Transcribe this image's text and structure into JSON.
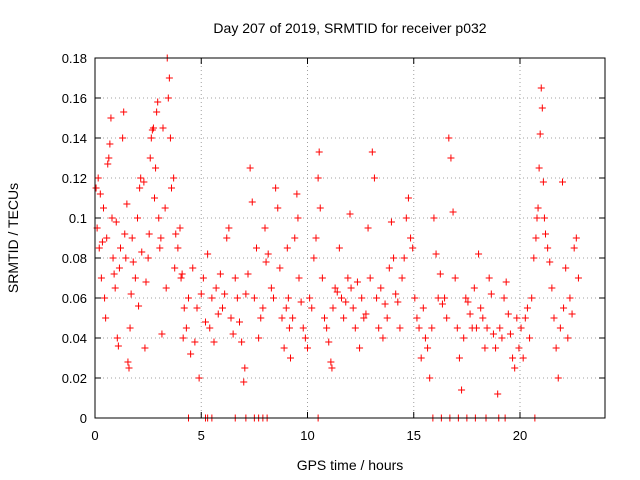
{
  "chart_data": {
    "type": "scatter",
    "title": "Day 207 of 2019, SRMTID for receiver p032",
    "xlabel": "GPS time / hours",
    "ylabel": "SRMTID / TECUs",
    "xlim": [
      0,
      24
    ],
    "ylim": [
      0,
      0.18
    ],
    "x_ticks": [
      0,
      5,
      10,
      15,
      20
    ],
    "x_tick_labels": [
      "0",
      "5",
      "10",
      "15",
      "20"
    ],
    "y_ticks": [
      0,
      0.02,
      0.04,
      0.06,
      0.08,
      0.1,
      0.12,
      0.14,
      0.16,
      0.18
    ],
    "y_tick_labels": [
      "0",
      "0.02",
      "0.04",
      "0.06",
      "0.08",
      "0.1",
      "0.12",
      "0.14",
      "0.16",
      "0.18"
    ],
    "grid": true,
    "marker": "+",
    "color": "#ff0000",
    "series": [
      {
        "name": "SRMTID",
        "points": [
          [
            0.05,
            0.115
          ],
          [
            0.1,
            0.095
          ],
          [
            0.15,
            0.12
          ],
          [
            0.2,
            0.085
          ],
          [
            0.25,
            0.112
          ],
          [
            0.3,
            0.07
          ],
          [
            0.35,
            0.088
          ],
          [
            0.4,
            0.105
          ],
          [
            0.45,
            0.06
          ],
          [
            0.5,
            0.05
          ],
          [
            0.55,
            0.09
          ],
          [
            0.6,
            0.127
          ],
          [
            0.65,
            0.13
          ],
          [
            0.7,
            0.137
          ],
          [
            0.75,
            0.15
          ],
          [
            0.8,
            0.1
          ],
          [
            0.85,
            0.08
          ],
          [
            0.9,
            0.072
          ],
          [
            0.95,
            0.065
          ],
          [
            1.0,
            0.098
          ],
          [
            1.05,
            0.04
          ],
          [
            1.1,
            0.036
          ],
          [
            1.15,
            0.075
          ],
          [
            1.2,
            0.085
          ],
          [
            1.3,
            0.14
          ],
          [
            1.35,
            0.153
          ],
          [
            1.4,
            0.092
          ],
          [
            1.45,
            0.08
          ],
          [
            1.5,
            0.107
          ],
          [
            1.55,
            0.028
          ],
          [
            1.6,
            0.025
          ],
          [
            1.65,
            0.045
          ],
          [
            1.7,
            0.062
          ],
          [
            1.75,
            0.09
          ],
          [
            1.8,
            0.078
          ],
          [
            1.9,
            0.07
          ],
          [
            2.0,
            0.1
          ],
          [
            2.05,
            0.056
          ],
          [
            2.1,
            0.115
          ],
          [
            2.15,
            0.12
          ],
          [
            2.2,
            0.083
          ],
          [
            2.3,
            0.118
          ],
          [
            2.35,
            0.035
          ],
          [
            2.4,
            0.068
          ],
          [
            2.5,
            0.08
          ],
          [
            2.55,
            0.092
          ],
          [
            2.6,
            0.13
          ],
          [
            2.65,
            0.14
          ],
          [
            2.7,
            0.144
          ],
          [
            2.75,
            0.145
          ],
          [
            2.8,
            0.11
          ],
          [
            2.85,
            0.125
          ],
          [
            2.9,
            0.153
          ],
          [
            2.95,
            0.158
          ],
          [
            3.0,
            0.1
          ],
          [
            3.05,
            0.085
          ],
          [
            3.1,
            0.09
          ],
          [
            3.15,
            0.042
          ],
          [
            3.2,
            0.145
          ],
          [
            3.3,
            0.105
          ],
          [
            3.35,
            0.065
          ],
          [
            3.4,
            0.18
          ],
          [
            3.45,
            0.16
          ],
          [
            3.5,
            0.17
          ],
          [
            3.55,
            0.14
          ],
          [
            3.6,
            0.115
          ],
          [
            3.7,
            0.12
          ],
          [
            3.75,
            0.075
          ],
          [
            3.8,
            0.092
          ],
          [
            3.9,
            0.085
          ],
          [
            4.0,
            0.095
          ],
          [
            4.05,
            0.07
          ],
          [
            4.1,
            0.072
          ],
          [
            4.15,
            0.04
          ],
          [
            4.2,
            0.055
          ],
          [
            4.3,
            0.045
          ],
          [
            4.4,
            0.06
          ],
          [
            4.5,
            0.032
          ],
          [
            4.6,
            0.075
          ],
          [
            4.7,
            0.038
          ],
          [
            4.8,
            0.055
          ],
          [
            4.9,
            0.02
          ],
          [
            5.0,
            0.062
          ],
          [
            5.1,
            0.07
          ],
          [
            5.2,
            0.048
          ],
          [
            5.3,
            0.082
          ],
          [
            5.4,
            0.045
          ],
          [
            5.5,
            0.06
          ],
          [
            5.6,
            0.038
          ],
          [
            5.7,
            0.065
          ],
          [
            5.8,
            0.052
          ],
          [
            5.9,
            0.072
          ],
          [
            6.0,
            0.055
          ],
          [
            6.1,
            0.062
          ],
          [
            6.2,
            0.09
          ],
          [
            6.3,
            0.095
          ],
          [
            6.4,
            0.05
          ],
          [
            6.5,
            0.042
          ],
          [
            6.6,
            0.07
          ],
          [
            6.7,
            0.06
          ],
          [
            6.8,
            0.048
          ],
          [
            6.9,
            0.038
          ],
          [
            7.0,
            0.018
          ],
          [
            7.05,
            0.025
          ],
          [
            7.1,
            0.062
          ],
          [
            7.2,
            0.072
          ],
          [
            7.3,
            0.125
          ],
          [
            7.4,
            0.108
          ],
          [
            7.5,
            0.06
          ],
          [
            7.6,
            0.085
          ],
          [
            7.7,
            0.04
          ],
          [
            7.8,
            0.05
          ],
          [
            7.9,
            0.055
          ],
          [
            8.0,
            0.095
          ],
          [
            8.05,
            0.078
          ],
          [
            8.15,
            0.082
          ],
          [
            8.3,
            0.065
          ],
          [
            8.4,
            0.06
          ],
          [
            8.5,
            0.115
          ],
          [
            8.6,
            0.105
          ],
          [
            8.7,
            0.075
          ],
          [
            8.8,
            0.05
          ],
          [
            8.9,
            0.035
          ],
          [
            9.0,
            0.055
          ],
          [
            9.05,
            0.085
          ],
          [
            9.1,
            0.06
          ],
          [
            9.15,
            0.045
          ],
          [
            9.2,
            0.03
          ],
          [
            9.3,
            0.05
          ],
          [
            9.4,
            0.09
          ],
          [
            9.5,
            0.112
          ],
          [
            9.55,
            0.1
          ],
          [
            9.6,
            0.07
          ],
          [
            9.7,
            0.058
          ],
          [
            9.8,
            0.045
          ],
          [
            9.9,
            0.04
          ],
          [
            10.0,
            0.035
          ],
          [
            10.1,
            0.06
          ],
          [
            10.2,
            0.055
          ],
          [
            10.3,
            0.08
          ],
          [
            10.4,
            0.09
          ],
          [
            10.5,
            0.12
          ],
          [
            10.55,
            0.133
          ],
          [
            10.6,
            0.105
          ],
          [
            10.7,
            0.07
          ],
          [
            10.8,
            0.05
          ],
          [
            10.9,
            0.045
          ],
          [
            11.0,
            0.038
          ],
          [
            11.1,
            0.028
          ],
          [
            11.15,
            0.025
          ],
          [
            11.2,
            0.055
          ],
          [
            11.3,
            0.065
          ],
          [
            11.4,
            0.063
          ],
          [
            11.5,
            0.085
          ],
          [
            11.6,
            0.06
          ],
          [
            11.7,
            0.05
          ],
          [
            11.8,
            0.058
          ],
          [
            11.9,
            0.07
          ],
          [
            12.0,
            0.102
          ],
          [
            12.05,
            0.065
          ],
          [
            12.15,
            0.055
          ],
          [
            12.25,
            0.045
          ],
          [
            12.35,
            0.068
          ],
          [
            12.45,
            0.035
          ],
          [
            12.55,
            0.06
          ],
          [
            12.65,
            0.05
          ],
          [
            12.75,
            0.052
          ],
          [
            12.85,
            0.095
          ],
          [
            12.95,
            0.07
          ],
          [
            13.05,
            0.133
          ],
          [
            13.15,
            0.12
          ],
          [
            13.25,
            0.06
          ],
          [
            13.35,
            0.045
          ],
          [
            13.45,
            0.065
          ],
          [
            13.55,
            0.04
          ],
          [
            13.65,
            0.057
          ],
          [
            13.75,
            0.05
          ],
          [
            13.85,
            0.075
          ],
          [
            13.95,
            0.098
          ],
          [
            14.05,
            0.08
          ],
          [
            14.15,
            0.062
          ],
          [
            14.25,
            0.058
          ],
          [
            14.35,
            0.045
          ],
          [
            14.45,
            0.07
          ],
          [
            14.55,
            0.08
          ],
          [
            14.65,
            0.1
          ],
          [
            14.75,
            0.11
          ],
          [
            14.85,
            0.09
          ],
          [
            14.95,
            0.085
          ],
          [
            15.05,
            0.06
          ],
          [
            15.15,
            0.05
          ],
          [
            15.25,
            0.045
          ],
          [
            15.35,
            0.03
          ],
          [
            15.45,
            0.055
          ],
          [
            15.55,
            0.04
          ],
          [
            15.65,
            0.035
          ],
          [
            15.75,
            0.02
          ],
          [
            15.85,
            0.045
          ],
          [
            15.95,
            0.1
          ],
          [
            16.05,
            0.082
          ],
          [
            16.15,
            0.06
          ],
          [
            16.25,
            0.072
          ],
          [
            16.35,
            0.057
          ],
          [
            16.45,
            0.06
          ],
          [
            16.55,
            0.05
          ],
          [
            16.65,
            0.14
          ],
          [
            16.75,
            0.13
          ],
          [
            16.85,
            0.103
          ],
          [
            16.95,
            0.07
          ],
          [
            17.05,
            0.045
          ],
          [
            17.15,
            0.03
          ],
          [
            17.25,
            0.014
          ],
          [
            17.35,
            0.04
          ],
          [
            17.45,
            0.06
          ],
          [
            17.55,
            0.058
          ],
          [
            17.65,
            0.052
          ],
          [
            17.75,
            0.045
          ],
          [
            17.85,
            0.065
          ],
          [
            17.95,
            0.045
          ],
          [
            18.05,
            0.082
          ],
          [
            18.15,
            0.055
          ],
          [
            18.25,
            0.05
          ],
          [
            18.35,
            0.035
          ],
          [
            18.45,
            0.045
          ],
          [
            18.55,
            0.07
          ],
          [
            18.65,
            0.062
          ],
          [
            18.75,
            0.042
          ],
          [
            18.85,
            0.035
          ],
          [
            18.95,
            0.012
          ],
          [
            19.05,
            0.045
          ],
          [
            19.15,
            0.04
          ],
          [
            19.25,
            0.06
          ],
          [
            19.35,
            0.068
          ],
          [
            19.45,
            0.052
          ],
          [
            19.55,
            0.042
          ],
          [
            19.65,
            0.03
          ],
          [
            19.75,
            0.025
          ],
          [
            19.85,
            0.05
          ],
          [
            19.95,
            0.035
          ],
          [
            20.05,
            0.045
          ],
          [
            20.15,
            0.03
          ],
          [
            20.25,
            0.05
          ],
          [
            20.35,
            0.055
          ],
          [
            20.45,
            0.04
          ],
          [
            20.55,
            0.06
          ],
          [
            20.65,
            0.08
          ],
          [
            20.75,
            0.09
          ],
          [
            20.8,
            0.1
          ],
          [
            20.85,
            0.105
          ],
          [
            20.9,
            0.125
          ],
          [
            20.95,
            0.142
          ],
          [
            21.0,
            0.165
          ],
          [
            21.05,
            0.155
          ],
          [
            21.1,
            0.118
          ],
          [
            21.15,
            0.1
          ],
          [
            21.2,
            0.092
          ],
          [
            21.3,
            0.085
          ],
          [
            21.4,
            0.078
          ],
          [
            21.5,
            0.065
          ],
          [
            21.6,
            0.05
          ],
          [
            21.7,
            0.035
          ],
          [
            21.8,
            0.02
          ],
          [
            21.9,
            0.045
          ],
          [
            22.0,
            0.118
          ],
          [
            22.05,
            0.055
          ],
          [
            22.15,
            0.075
          ],
          [
            22.25,
            0.04
          ],
          [
            22.35,
            0.06
          ],
          [
            22.45,
            0.052
          ],
          [
            22.55,
            0.085
          ],
          [
            22.65,
            0.09
          ],
          [
            22.75,
            0.07
          ]
        ]
      }
    ],
    "zero_points_x": [
      4.4,
      5.2,
      5.3,
      5.5,
      6.6,
      7.1,
      7.5,
      7.7,
      7.9,
      8.1,
      10.5,
      15.9,
      16.3,
      16.7,
      17.1,
      17.5,
      17.9,
      18.4,
      19.0,
      19.3,
      20.7
    ]
  }
}
